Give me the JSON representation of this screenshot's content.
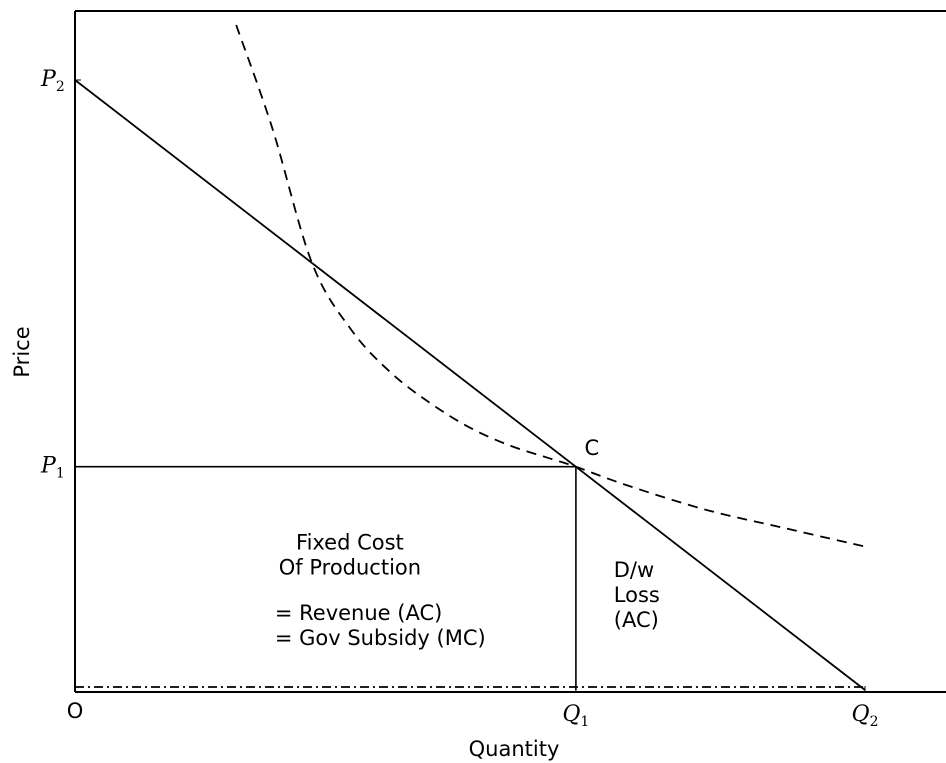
{
  "chart_data": {
    "type": "line",
    "xlabel": "Quantity",
    "ylabel": "Price",
    "xlim": [
      0,
      1.1
    ],
    "ylim": [
      0,
      1.1
    ],
    "grid": false,
    "x_ticks": [
      {
        "label": "O",
        "sub": "",
        "value": 0
      },
      {
        "label": "Q",
        "sub": "1",
        "value": 0.634
      },
      {
        "label": "Q",
        "sub": "2",
        "value": 1.0
      }
    ],
    "y_ticks": [
      {
        "label": "P",
        "sub": "1",
        "value": 0.366
      },
      {
        "label": "P",
        "sub": "2",
        "value": 1.0
      }
    ],
    "series": [
      {
        "style": "solid",
        "color": "#000000",
        "points": [
          [
            0,
            1.0
          ],
          [
            1.0,
            0.0
          ]
        ]
      },
      {
        "style": "dashed",
        "color": "#000000",
        "points": [
          [
            0.204,
            1.09
          ],
          [
            0.25,
            0.92
          ],
          [
            0.3,
            0.7
          ],
          [
            0.35,
            0.59
          ],
          [
            0.4,
            0.52
          ],
          [
            0.45,
            0.47
          ],
          [
            0.5,
            0.43
          ],
          [
            0.55,
            0.401
          ],
          [
            0.6,
            0.38
          ],
          [
            0.634,
            0.366
          ],
          [
            0.7,
            0.335
          ],
          [
            0.8,
            0.295
          ],
          [
            0.9,
            0.265
          ],
          [
            1.0,
            0.235
          ]
        ]
      },
      {
        "style": "dashdot",
        "color": "#000000",
        "points": [
          [
            0,
            0.005
          ],
          [
            1.0,
            0.005
          ]
        ]
      }
    ],
    "reference_lines": [
      {
        "points": [
          [
            0,
            0.366
          ],
          [
            0.634,
            0.366
          ]
        ]
      },
      {
        "points": [
          [
            0.634,
            0.0
          ],
          [
            0.634,
            0.366
          ]
        ]
      }
    ],
    "annotations": [
      {
        "lines": [
          "C"
        ],
        "x": 0.645,
        "y": 0.385,
        "anchor": "start"
      },
      {
        "lines": [
          "Fixed Cost",
          "Of Production"
        ],
        "x": 0.348,
        "y": 0.23,
        "anchor": "middle"
      },
      {
        "lines": [
          "= Revenue (AC)",
          "= Gov Subsidy (MC)"
        ],
        "x": 0.253,
        "y": 0.115,
        "anchor": "start"
      },
      {
        "lines": [
          "D/w",
          "Loss",
          "(AC)"
        ],
        "x": 0.682,
        "y": 0.185,
        "anchor": "start"
      }
    ]
  }
}
